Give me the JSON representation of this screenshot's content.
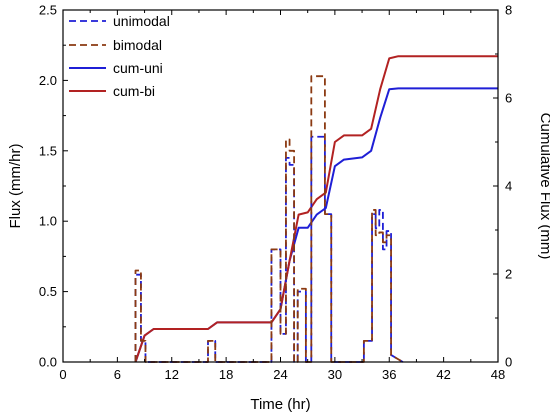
{
  "chart_data": {
    "type": "line",
    "xlabel": "Time (hr)",
    "ylabel_left": "Flux (mm/hr)",
    "ylabel_right": "Cumulative Flux (mm)",
    "xlim": [
      0,
      48
    ],
    "ylim_left": [
      0,
      2.5
    ],
    "ylim_right": [
      0,
      8
    ],
    "x_ticks": [
      0,
      6,
      12,
      18,
      24,
      30,
      36,
      42,
      48
    ],
    "y_left_ticks": [
      0.0,
      0.5,
      1.0,
      1.5,
      2.0,
      2.5
    ],
    "y_right_ticks": [
      0,
      2,
      4,
      6,
      8
    ],
    "grid": false,
    "legend_position": "top-left",
    "series": [
      {
        "name": "unimodal",
        "axis": "left",
        "style": "dashed",
        "color": "#1f1fd6",
        "x": [
          8.0,
          8.0,
          8.6,
          8.6,
          9.1,
          9.1,
          16.0,
          16.0,
          16.8,
          16.8,
          23.0,
          23.0,
          24.0,
          24.0,
          24.6,
          24.6,
          25.0,
          25.0,
          25.5,
          25.5,
          25.9,
          25.9,
          26.8,
          26.8,
          27.4,
          27.4,
          28.9,
          28.9,
          29.6,
          29.6,
          30.2,
          30.2,
          33.2,
          33.2,
          34.1,
          34.1,
          34.5,
          34.5,
          34.9,
          34.9,
          35.3,
          35.3,
          35.7,
          35.7,
          36.2,
          36.2,
          37.5
        ],
        "y": [
          0.0,
          0.62,
          0.62,
          0.15,
          0.15,
          0.0,
          0.0,
          0.15,
          0.15,
          0.0,
          0.0,
          0.8,
          0.8,
          0.2,
          0.2,
          1.45,
          1.45,
          1.4,
          1.4,
          0.0,
          0.0,
          0.5,
          0.5,
          0.0,
          0.0,
          1.6,
          1.6,
          1.05,
          1.05,
          0.0,
          0.0,
          0.0,
          0.0,
          0.15,
          0.15,
          1.05,
          1.05,
          0.95,
          0.95,
          1.08,
          1.08,
          0.8,
          0.8,
          0.93,
          0.93,
          0.05,
          0.0
        ]
      },
      {
        "name": "bimodal",
        "axis": "left",
        "style": "dashed",
        "color": "#8b3a12",
        "x": [
          8.0,
          8.0,
          8.6,
          8.6,
          9.1,
          9.1,
          16.0,
          16.0,
          16.8,
          16.8,
          23.0,
          23.0,
          24.0,
          24.0,
          24.6,
          24.6,
          25.0,
          25.0,
          25.5,
          25.5,
          25.9,
          25.9,
          26.8,
          26.8,
          27.4,
          27.4,
          28.9,
          28.9,
          29.6,
          29.6,
          30.2,
          30.2,
          33.2,
          33.2,
          34.1,
          34.1,
          34.5,
          34.5,
          34.9,
          34.9,
          35.3,
          35.3,
          35.7,
          35.7,
          36.2,
          36.2,
          37.5
        ],
        "y": [
          0.0,
          0.65,
          0.65,
          0.15,
          0.15,
          0.0,
          0.0,
          0.15,
          0.15,
          0.0,
          0.0,
          0.8,
          0.8,
          0.2,
          0.2,
          1.58,
          1.58,
          1.5,
          1.5,
          0.0,
          0.0,
          0.52,
          0.52,
          0.0,
          0.0,
          2.03,
          2.03,
          1.05,
          1.05,
          0.0,
          0.0,
          0.0,
          0.0,
          0.15,
          0.15,
          1.08,
          1.08,
          0.9,
          0.9,
          0.92,
          0.92,
          0.85,
          0.85,
          0.9,
          0.9,
          0.05,
          0.0
        ]
      },
      {
        "name": "cum-uni",
        "axis": "right",
        "style": "solid",
        "color": "#1f1fd6",
        "x": [
          8.0,
          9.0,
          10.0,
          16.0,
          17.0,
          23.0,
          24.0,
          25.0,
          26.0,
          27.0,
          28.0,
          29.0,
          30.0,
          31.0,
          33.0,
          34.0,
          35.0,
          36.0,
          37.0,
          48.0
        ],
        "y": [
          0.0,
          0.6,
          0.75,
          0.75,
          0.9,
          0.9,
          1.2,
          2.3,
          3.05,
          3.05,
          3.35,
          3.5,
          4.45,
          4.6,
          4.65,
          4.8,
          5.55,
          6.2,
          6.22,
          6.22
        ]
      },
      {
        "name": "cum-bi",
        "axis": "right",
        "style": "solid",
        "color": "#b22222",
        "x": [
          8.0,
          9.0,
          10.0,
          16.0,
          17.0,
          23.0,
          24.0,
          25.0,
          26.0,
          27.0,
          28.0,
          29.0,
          30.0,
          31.0,
          33.0,
          34.0,
          35.0,
          36.0,
          37.0,
          48.0
        ],
        "y": [
          0.0,
          0.6,
          0.75,
          0.75,
          0.9,
          0.9,
          1.2,
          2.3,
          3.35,
          3.4,
          3.7,
          3.85,
          5.0,
          5.15,
          5.15,
          5.3,
          6.2,
          6.9,
          6.95,
          6.95
        ]
      }
    ]
  }
}
